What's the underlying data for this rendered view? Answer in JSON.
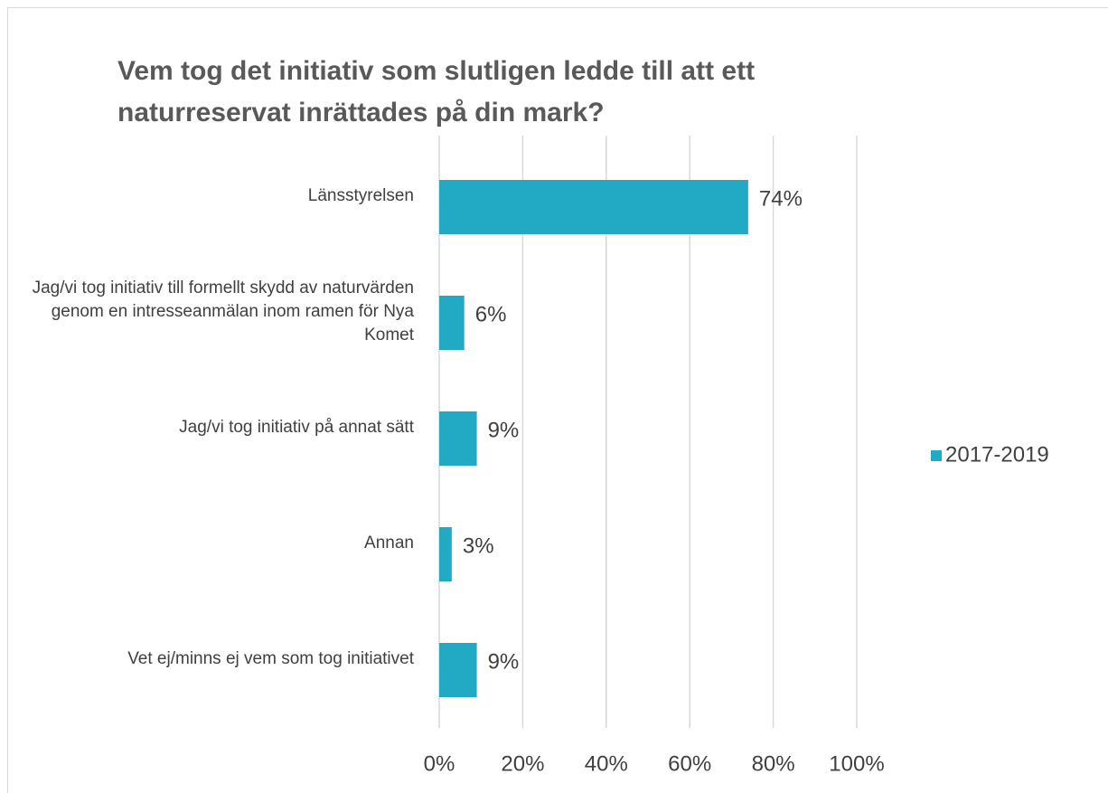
{
  "chart_data": {
    "type": "bar",
    "orientation": "horizontal",
    "title": "Vem tog det initiativ som slutligen ledde till att ett naturreservat inrättades på din mark?",
    "categories": [
      "Länsstyrelsen",
      "Jag/vi tog initiativ till formellt skydd av naturvärden genom en intresseanmälan inom ramen för Nya Komet",
      "Jag/vi tog initiativ på annat sätt",
      "Annan",
      "Vet ej/minns ej vem som tog initiativet"
    ],
    "series": [
      {
        "name": "2017-2019",
        "color": "#22a9c4",
        "values": [
          74,
          6,
          9,
          3,
          9
        ],
        "value_labels": [
          "74%",
          "6%",
          "9%",
          "3%",
          "9%"
        ]
      }
    ],
    "xlim": [
      0,
      100
    ],
    "xticks": [
      {
        "value": 0,
        "label": "0%"
      },
      {
        "value": 20,
        "label": "20%"
      },
      {
        "value": 40,
        "label": "40%"
      },
      {
        "value": 60,
        "label": "60%"
      },
      {
        "value": 80,
        "label": "80%"
      },
      {
        "value": 100,
        "label": "100%"
      }
    ],
    "grid": true,
    "legend": "right"
  }
}
